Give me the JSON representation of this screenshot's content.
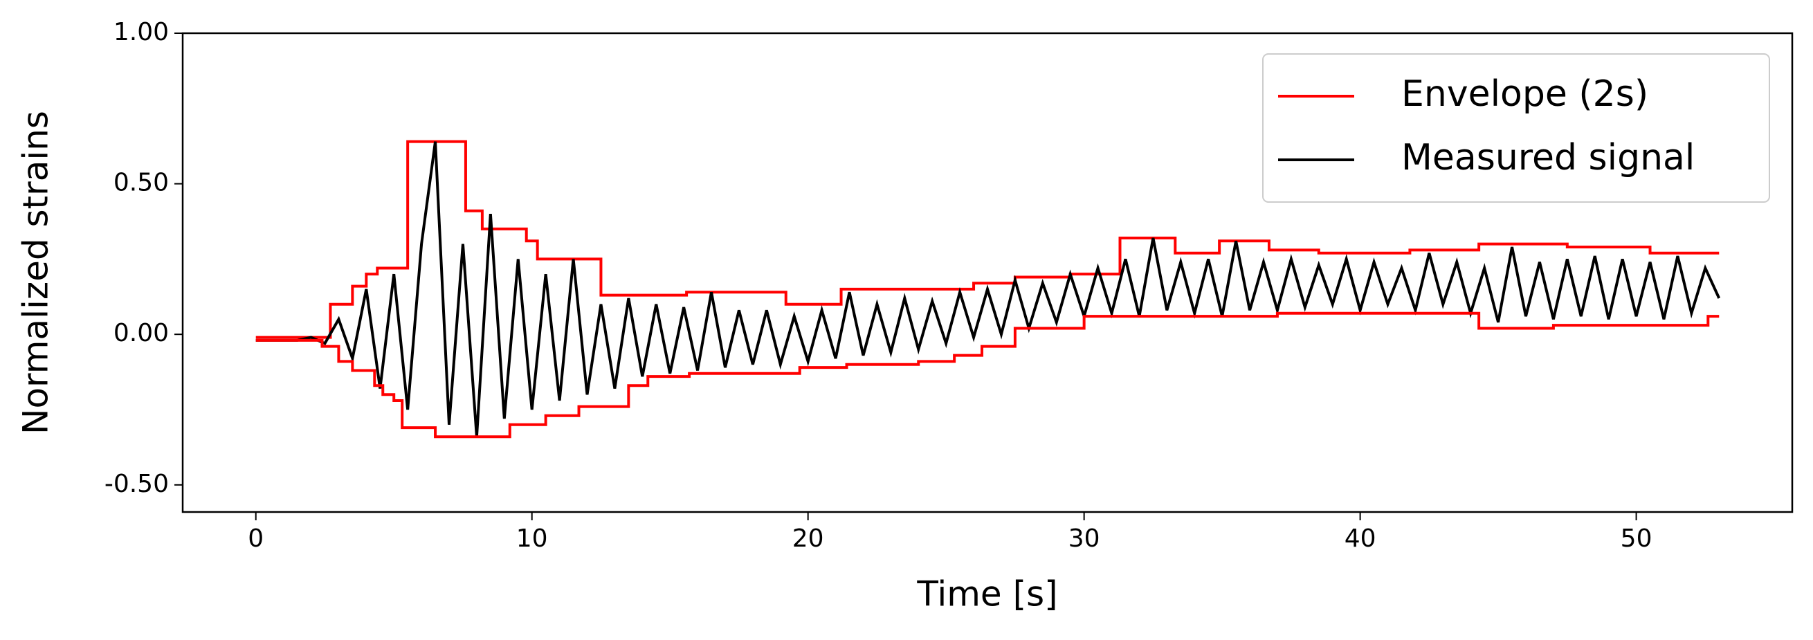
{
  "chart_data": {
    "type": "line",
    "xlabel": "Time [s]",
    "ylabel": "Normalized strains",
    "xlim": [
      -2.65,
      55.65
    ],
    "ylim": [
      -0.59,
      1.0
    ],
    "xticks": [
      0,
      10,
      20,
      30,
      40,
      50
    ],
    "yticks": [
      {
        "value": 1.0,
        "label": "1.00"
      },
      {
        "value": 0.5,
        "label": "0.50"
      },
      {
        "value": 0,
        "label": "0.00"
      },
      {
        "value": -0.5,
        "label": "-0.50"
      }
    ],
    "legend": "upper right",
    "series": [
      {
        "name": "Envelope (2s)",
        "color": "#ff0000",
        "step": "post",
        "x": [
          0,
          2.7,
          3.5,
          4.0,
          4.4,
          5.5,
          7.6,
          8.2,
          9.8,
          10.2,
          12.5,
          15.6,
          19.2,
          21.2,
          26,
          27.5,
          29.5,
          31.3,
          33.3,
          34.9,
          36.7,
          38.5,
          41.8,
          44.3,
          47.5,
          50.5,
          53
        ],
        "values": [
          -0.01,
          0.1,
          0.16,
          0.2,
          0.22,
          0.64,
          0.41,
          0.35,
          0.31,
          0.25,
          0.13,
          0.14,
          0.1,
          0.15,
          0.17,
          0.19,
          0.2,
          0.32,
          0.27,
          0.31,
          0.28,
          0.27,
          0.28,
          0.3,
          0.29,
          0.27,
          0.27
        ]
      },
      {
        "name": "Measured signal",
        "color": "#000000",
        "x": [
          0,
          0.5,
          1,
          1.5,
          2,
          2.5,
          3,
          3.5,
          4,
          4.5,
          5,
          5.5,
          6,
          6.5,
          7,
          7.5,
          8,
          8.5,
          9,
          9.5,
          10,
          10.5,
          11,
          11.5,
          12,
          12.5,
          13,
          13.5,
          14,
          14.5,
          15,
          15.5,
          16,
          16.5,
          17,
          17.5,
          18,
          18.5,
          19,
          19.5,
          20,
          20.5,
          21,
          21.5,
          22,
          22.5,
          23,
          23.5,
          24,
          24.5,
          25,
          25.5,
          26,
          26.5,
          27,
          27.5,
          28,
          28.5,
          29,
          29.5,
          30,
          30.5,
          31,
          31.5,
          32,
          32.5,
          33,
          33.5,
          34,
          34.5,
          35,
          35.5,
          36,
          36.5,
          37,
          37.5,
          38,
          38.5,
          39,
          39.5,
          40,
          40.5,
          41,
          41.5,
          42,
          42.5,
          43,
          43.5,
          44,
          44.5,
          45,
          45.5,
          46,
          46.5,
          47,
          47.5,
          48,
          48.5,
          49,
          49.5,
          50,
          50.5,
          51,
          51.5,
          52,
          52.5,
          53
        ],
        "values": [
          -0.02,
          -0.02,
          -0.02,
          -0.02,
          -0.01,
          -0.03,
          0.05,
          -0.08,
          0.15,
          -0.18,
          0.2,
          -0.25,
          0.3,
          0.64,
          -0.3,
          0.3,
          -0.34,
          0.4,
          -0.28,
          0.25,
          -0.25,
          0.2,
          -0.22,
          0.25,
          -0.2,
          0.1,
          -0.18,
          0.12,
          -0.14,
          0.1,
          -0.13,
          0.09,
          -0.12,
          0.14,
          -0.11,
          0.08,
          -0.1,
          0.08,
          -0.1,
          0.06,
          -0.09,
          0.08,
          -0.08,
          0.14,
          -0.07,
          0.1,
          -0.06,
          0.12,
          -0.05,
          0.11,
          -0.03,
          0.14,
          -0.01,
          0.15,
          0.0,
          0.18,
          0.02,
          0.17,
          0.04,
          0.2,
          0.06,
          0.22,
          0.07,
          0.25,
          0.06,
          0.32,
          0.08,
          0.24,
          0.07,
          0.25,
          0.06,
          0.31,
          0.08,
          0.24,
          0.08,
          0.25,
          0.09,
          0.23,
          0.1,
          0.25,
          0.08,
          0.24,
          0.1,
          0.22,
          0.08,
          0.27,
          0.1,
          0.24,
          0.07,
          0.22,
          0.04,
          0.29,
          0.06,
          0.24,
          0.05,
          0.25,
          0.06,
          0.26,
          0.05,
          0.25,
          0.06,
          0.24,
          0.05,
          0.26,
          0.07,
          0.22,
          0.12
        ]
      },
      {
        "color": "#ff0000",
        "step": "post",
        "x": [
          0,
          2.4,
          3,
          3.5,
          4.3,
          4.6,
          5,
          5.3,
          6.5,
          9.2,
          10.5,
          11.7,
          13.5,
          14.2,
          15.7,
          19.7,
          21.4,
          24,
          25.3,
          26.3,
          27.5,
          30,
          37,
          41.7,
          44.3,
          46.3,
          47,
          50.3,
          52.6,
          53
        ],
        "values": [
          -0.02,
          -0.04,
          -0.09,
          -0.12,
          -0.17,
          -0.2,
          -0.22,
          -0.31,
          -0.34,
          -0.3,
          -0.27,
          -0.24,
          -0.17,
          -0.14,
          -0.13,
          -0.11,
          -0.1,
          -0.09,
          -0.07,
          -0.04,
          0.02,
          0.06,
          0.07,
          0.07,
          0.02,
          0.02,
          0.03,
          0.03,
          0.06,
          0.06
        ]
      }
    ]
  }
}
